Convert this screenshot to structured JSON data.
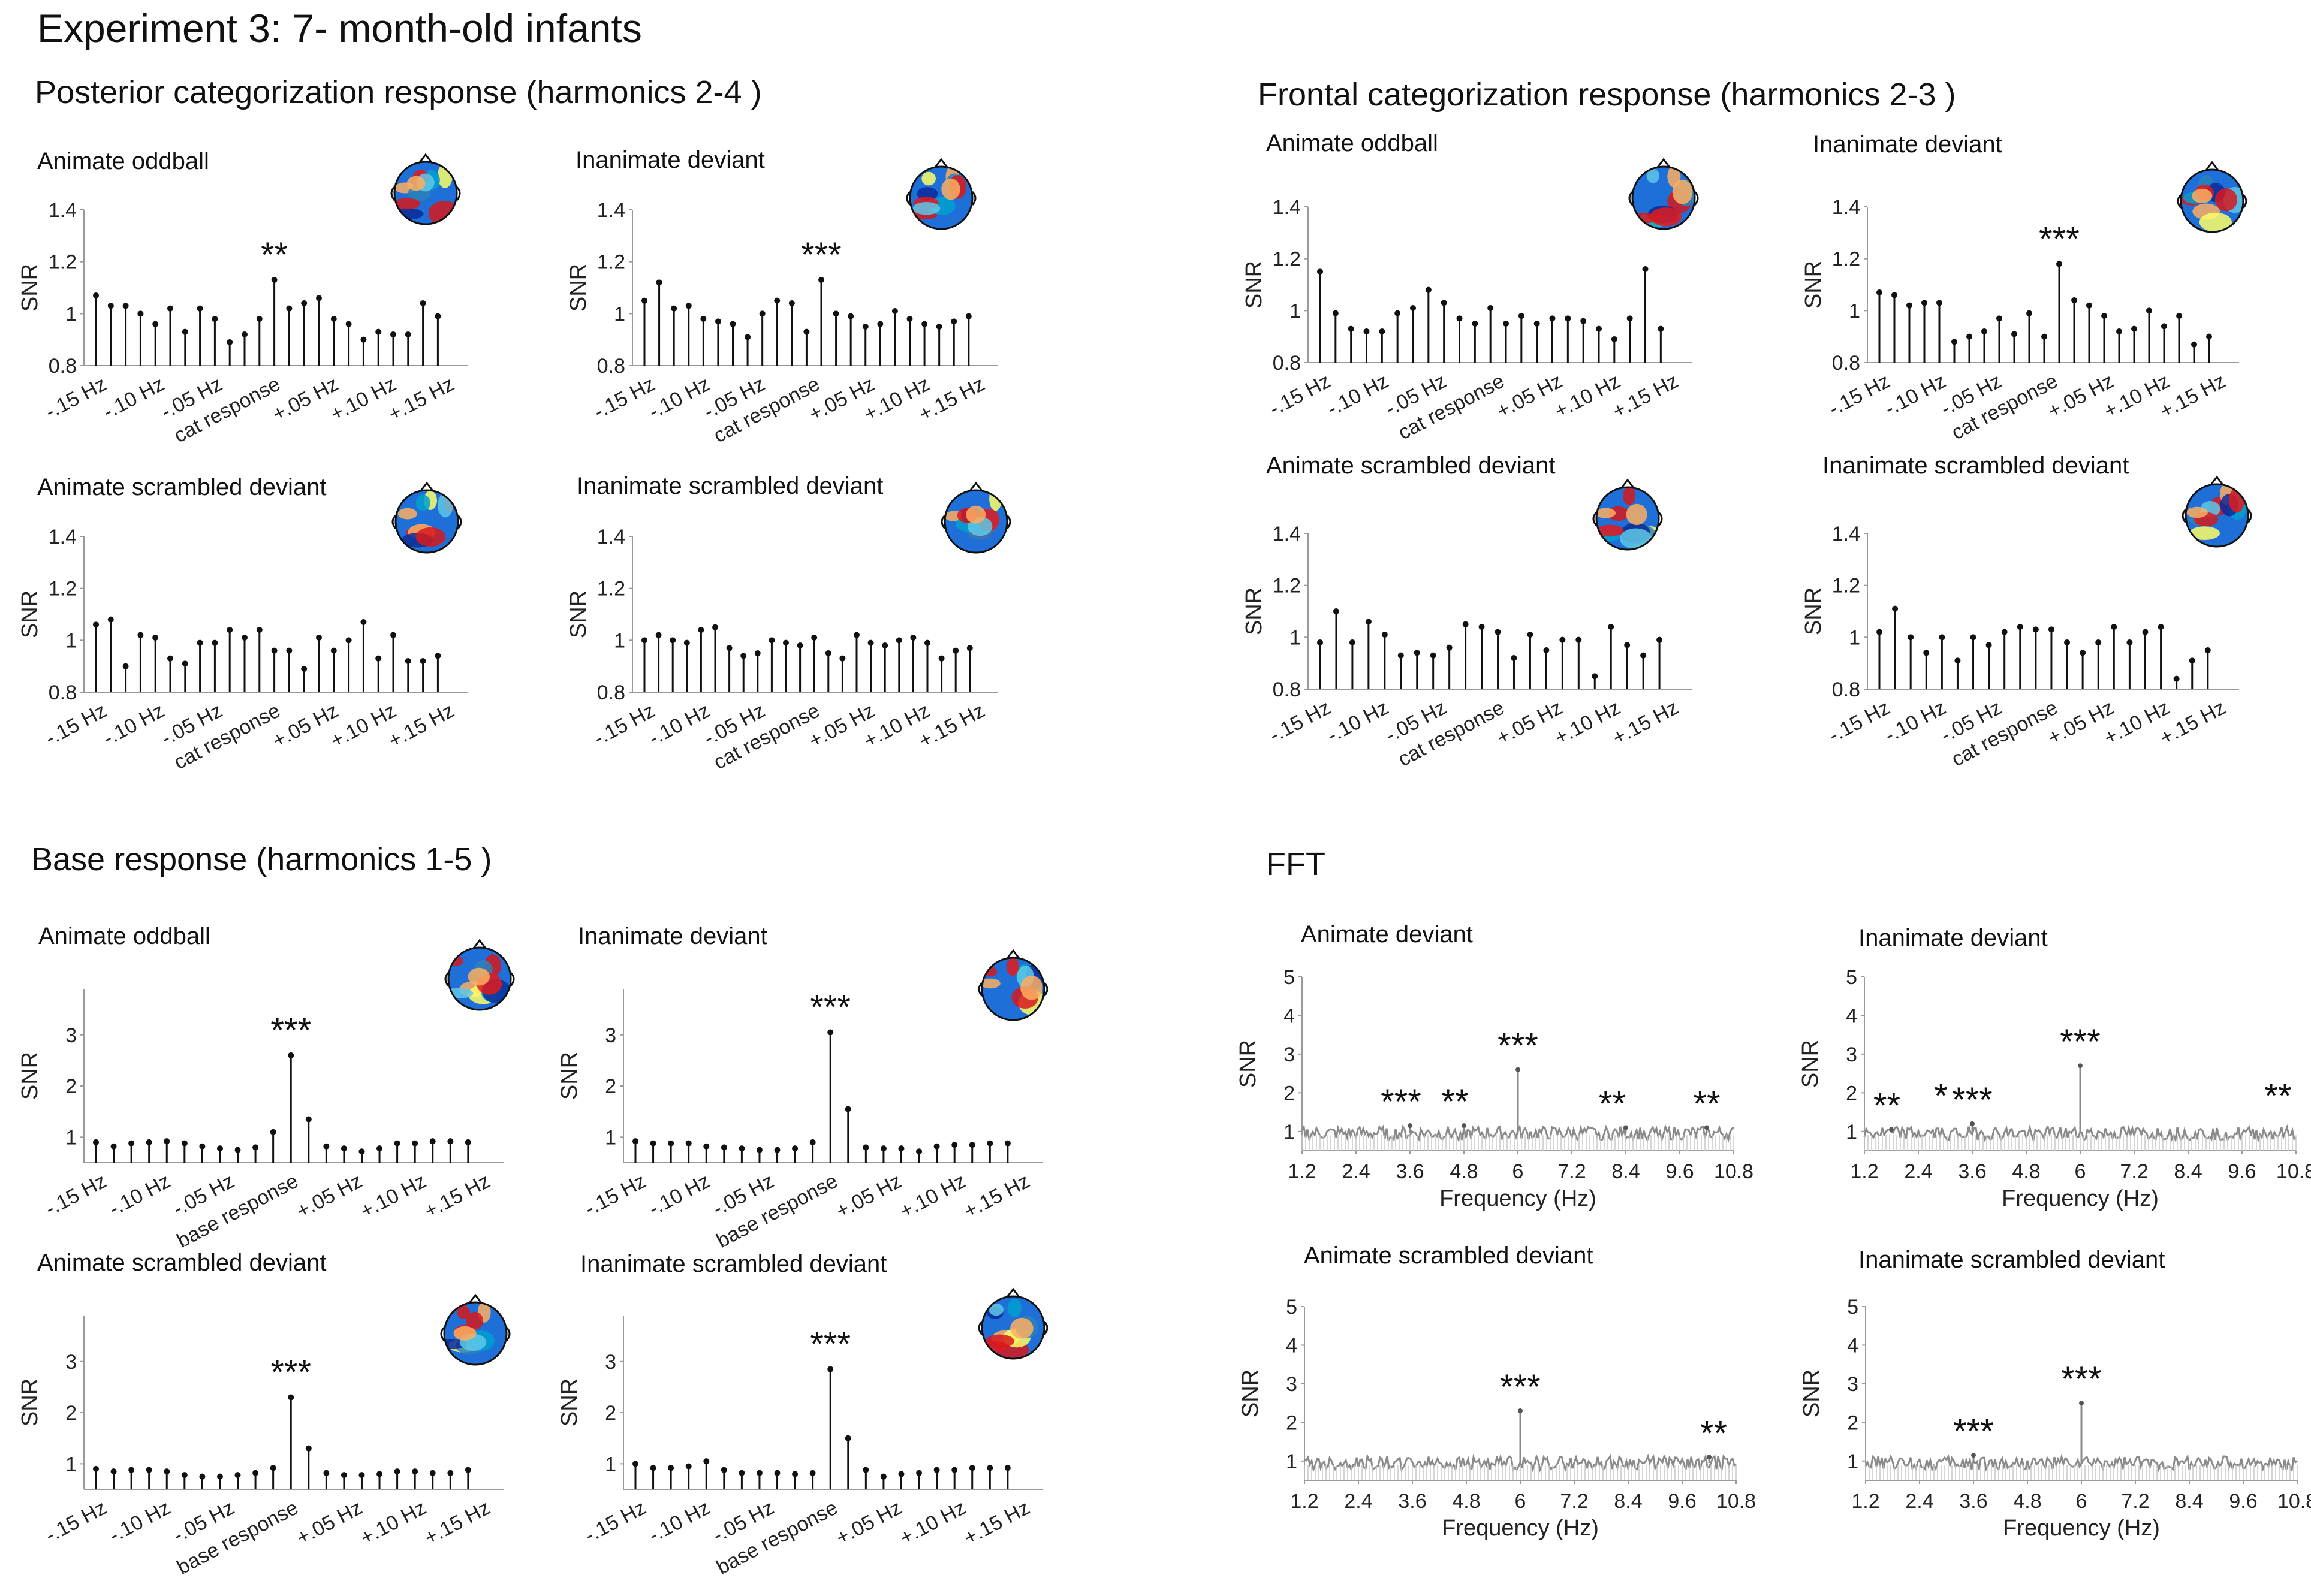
{
  "figure_title": "Experiment 3:  7- month-old infants",
  "sections": {
    "posterior": "Posterior categorization response (harmonics  2-4 )",
    "frontal": "Frontal categorization response (harmonics 2-3 )",
    "base": "Base response (harmonics 1-5 )",
    "fft": "FFT"
  },
  "colors": {
    "stem": "#111111",
    "fft_line": "#8a8a8a",
    "fft_marker": "#555555"
  },
  "chart_data": [
    {
      "id": "post-anim-odd",
      "type": "stem",
      "title": "Animate oddball",
      "ylabel": "SNR",
      "ylim": [
        0.8,
        1.4
      ],
      "yticks": [
        "0.8",
        "1",
        "1.2",
        "1.4"
      ],
      "xtick_labels": [
        "-.15 Hz",
        "-.10 Hz",
        "-.05 Hz",
        "cat response",
        "+.05 Hz",
        "+.10 Hz",
        "+.15 Hz"
      ],
      "values": [
        1.07,
        1.03,
        1.03,
        1.0,
        0.96,
        1.02,
        0.93,
        1.02,
        0.98,
        0.89,
        0.92,
        0.98,
        1.13,
        1.02,
        1.04,
        1.06,
        0.98,
        0.96,
        0.9,
        0.93,
        0.92,
        0.92,
        1.04,
        0.99
      ],
      "sig_index": 12,
      "stars": "**"
    },
    {
      "id": "post-inan-dev",
      "type": "stem",
      "title": "Inanimate deviant",
      "ylabel": "SNR",
      "ylim": [
        0.8,
        1.4
      ],
      "yticks": [
        "0.8",
        "1",
        "1.2",
        "1.4"
      ],
      "xtick_labels": [
        "-.15 Hz",
        "-.10 Hz",
        "-.05 Hz",
        "cat response",
        "+.05 Hz",
        "+.10 Hz",
        "+.15 Hz"
      ],
      "values": [
        1.05,
        1.12,
        1.02,
        1.03,
        0.98,
        0.97,
        0.96,
        0.91,
        1.0,
        1.05,
        1.04,
        0.93,
        1.13,
        1.0,
        0.99,
        0.95,
        0.96,
        1.01,
        0.98,
        0.96,
        0.95,
        0.97,
        0.99
      ],
      "sig_index": 12,
      "stars": "***"
    },
    {
      "id": "post-anim-scr",
      "type": "stem",
      "title": "Animate scrambled deviant",
      "ylabel": "SNR",
      "ylim": [
        0.8,
        1.4
      ],
      "yticks": [
        "0.8",
        "1",
        "1.2",
        "1.4"
      ],
      "xtick_labels": [
        "-.15 Hz",
        "-.10 Hz",
        "-.05 Hz",
        "cat response",
        "+.05 Hz",
        "+.10 Hz",
        "+.15 Hz"
      ],
      "values": [
        1.06,
        1.08,
        0.9,
        1.02,
        1.01,
        0.93,
        0.91,
        0.99,
        0.99,
        1.04,
        1.01,
        1.04,
        0.96,
        0.96,
        0.89,
        1.01,
        0.96,
        1.0,
        1.07,
        0.93,
        1.02,
        0.92,
        0.92,
        0.94
      ],
      "sig_index": null,
      "stars": ""
    },
    {
      "id": "post-inan-scr",
      "type": "stem",
      "title": "Inanimate scrambled deviant",
      "ylabel": "SNR",
      "ylim": [
        0.8,
        1.4
      ],
      "yticks": [
        "0.8",
        "1",
        "1.2",
        "1.4"
      ],
      "xtick_labels": [
        "-.15 Hz",
        "-.10 Hz",
        "-.05 Hz",
        "cat response",
        "+.05 Hz",
        "+.10 Hz",
        "+.15 Hz"
      ],
      "values": [
        1.0,
        1.02,
        1.0,
        0.99,
        1.04,
        1.05,
        0.97,
        0.94,
        0.95,
        1.0,
        0.99,
        0.98,
        1.01,
        0.95,
        0.93,
        1.02,
        0.99,
        0.98,
        1.0,
        1.01,
        0.99,
        0.93,
        0.96,
        0.97
      ],
      "sig_index": null,
      "stars": ""
    },
    {
      "id": "front-anim-odd",
      "type": "stem",
      "title": "Animate oddball",
      "ylabel": "SNR",
      "ylim": [
        0.8,
        1.4
      ],
      "yticks": [
        "0.8",
        "1",
        "1.2",
        "1.4"
      ],
      "xtick_labels": [
        "-.15 Hz",
        "-.10 Hz",
        "-.05 Hz",
        "cat response",
        "+.05 Hz",
        "+.10 Hz",
        "+.15 Hz"
      ],
      "values": [
        1.15,
        0.99,
        0.93,
        0.92,
        0.92,
        0.99,
        1.01,
        1.08,
        1.03,
        0.97,
        0.95,
        1.01,
        0.95,
        0.98,
        0.95,
        0.97,
        0.97,
        0.96,
        0.93,
        0.89,
        0.97,
        1.16,
        0.93
      ],
      "sig_index": null,
      "stars": ""
    },
    {
      "id": "front-inan-dev",
      "type": "stem",
      "title": "Inanimate deviant",
      "ylabel": "SNR",
      "ylim": [
        0.8,
        1.4
      ],
      "yticks": [
        "0.8",
        "1",
        "1.2",
        "1.4"
      ],
      "xtick_labels": [
        "-.15 Hz",
        "-.10 Hz",
        "-.05 Hz",
        "cat response",
        "+.05 Hz",
        "+.10 Hz",
        "+.15 Hz"
      ],
      "values": [
        1.07,
        1.06,
        1.02,
        1.03,
        1.03,
        0.88,
        0.9,
        0.92,
        0.97,
        0.91,
        0.99,
        0.9,
        1.18,
        1.04,
        1.02,
        0.98,
        0.92,
        0.93,
        1.0,
        0.94,
        0.98,
        0.87,
        0.9
      ],
      "sig_index": 12,
      "stars": "***"
    },
    {
      "id": "front-anim-scr",
      "type": "stem",
      "title": "Animate scrambled deviant",
      "ylabel": "SNR",
      "ylim": [
        0.8,
        1.4
      ],
      "yticks": [
        "0.8",
        "1",
        "1.2",
        "1.4"
      ],
      "xtick_labels": [
        "-.15 Hz",
        "-.10 Hz",
        "-.05 Hz",
        "cat response",
        "+.05 Hz",
        "+.10 Hz",
        "+.15 Hz"
      ],
      "values": [
        0.98,
        1.1,
        0.98,
        1.06,
        1.01,
        0.93,
        0.94,
        0.93,
        0.96,
        1.05,
        1.04,
        1.02,
        0.92,
        1.01,
        0.95,
        0.99,
        0.99,
        0.85,
        1.04,
        0.97,
        0.93,
        0.99
      ],
      "sig_index": null,
      "stars": ""
    },
    {
      "id": "front-inan-scr",
      "type": "stem",
      "title": "Inanimate scrambled deviant",
      "ylabel": "SNR",
      "ylim": [
        0.8,
        1.4
      ],
      "yticks": [
        "0.8",
        "1",
        "1.2",
        "1.4"
      ],
      "xtick_labels": [
        "-.15 Hz",
        "-.10 Hz",
        "-.05 Hz",
        "cat response",
        "+.05 Hz",
        "+.10 Hz",
        "+.15 Hz"
      ],
      "values": [
        1.02,
        1.11,
        1.0,
        0.94,
        1.0,
        0.91,
        1.0,
        0.97,
        1.02,
        1.04,
        1.03,
        1.03,
        0.98,
        0.94,
        0.98,
        1.04,
        0.98,
        1.02,
        1.04,
        0.84,
        0.91,
        0.95
      ],
      "sig_index": null,
      "stars": ""
    },
    {
      "id": "base-anim-odd",
      "type": "stem",
      "title": "Animate oddball",
      "ylabel": "SNR",
      "ylim": [
        0.5,
        3.9
      ],
      "yticks": [
        "1",
        "2",
        "3"
      ],
      "xtick_labels": [
        "-.15 Hz",
        "-.10 Hz",
        "-.05 Hz",
        "base response",
        "+.05 Hz",
        "+.10 Hz",
        "+.15 Hz"
      ],
      "values": [
        0.9,
        0.82,
        0.88,
        0.9,
        0.92,
        0.88,
        0.82,
        0.78,
        0.75,
        0.8,
        1.1,
        2.6,
        1.35,
        0.82,
        0.78,
        0.72,
        0.78,
        0.88,
        0.88,
        0.92,
        0.92,
        0.9
      ],
      "sig_index": 11,
      "stars": "***"
    },
    {
      "id": "base-inan-dev",
      "type": "stem",
      "title": "Inanimate deviant",
      "ylabel": "SNR",
      "ylim": [
        0.5,
        3.9
      ],
      "yticks": [
        "1",
        "2",
        "3"
      ],
      "xtick_labels": [
        "-.15 Hz",
        "-.10 Hz",
        "-.05 Hz",
        "base response",
        "+.05 Hz",
        "+.10 Hz",
        "+.15 Hz"
      ],
      "values": [
        0.92,
        0.88,
        0.88,
        0.88,
        0.82,
        0.8,
        0.78,
        0.75,
        0.75,
        0.78,
        0.9,
        3.05,
        1.55,
        0.8,
        0.78,
        0.78,
        0.72,
        0.82,
        0.85,
        0.85,
        0.88,
        0.88
      ],
      "sig_index": 11,
      "stars": "***"
    },
    {
      "id": "base-anim-scr",
      "type": "stem",
      "title": "Animate scrambled deviant",
      "ylabel": "SNR",
      "ylim": [
        0.5,
        3.9
      ],
      "yticks": [
        "1",
        "2",
        "3"
      ],
      "xtick_labels": [
        "-.15 Hz",
        "-.10 Hz",
        "-.05 Hz",
        "base response",
        "+.05 Hz",
        "+.10 Hz",
        "+.15 Hz"
      ],
      "values": [
        0.9,
        0.85,
        0.88,
        0.88,
        0.85,
        0.78,
        0.75,
        0.75,
        0.78,
        0.82,
        0.92,
        2.3,
        1.3,
        0.82,
        0.78,
        0.78,
        0.8,
        0.85,
        0.85,
        0.82,
        0.82,
        0.88
      ],
      "sig_index": 11,
      "stars": "***"
    },
    {
      "id": "base-inan-scr",
      "type": "stem",
      "title": "Inanimate scrambled deviant",
      "ylabel": "SNR",
      "ylim": [
        0.5,
        3.9
      ],
      "yticks": [
        "1",
        "2",
        "3"
      ],
      "xtick_labels": [
        "-.15 Hz",
        "-.10 Hz",
        "-.05 Hz",
        "base response",
        "+.05 Hz",
        "+.10 Hz",
        "+.15 Hz"
      ],
      "values": [
        1.0,
        0.92,
        0.92,
        0.95,
        1.05,
        0.88,
        0.82,
        0.82,
        0.82,
        0.8,
        0.82,
        2.85,
        1.5,
        0.88,
        0.75,
        0.8,
        0.82,
        0.88,
        0.88,
        0.92,
        0.92,
        0.92
      ],
      "sig_index": 11,
      "stars": "***"
    },
    {
      "id": "fft-anim-dev",
      "type": "line",
      "title": "Animate deviant",
      "ylabel": "SNR",
      "xlabel": "Frequency (Hz)",
      "xlim": [
        1.2,
        10.8
      ],
      "ylim": [
        0.5,
        5.0
      ],
      "xticks": [
        "1.2",
        "2.4",
        "3.6",
        "4.8",
        "6",
        "7.2",
        "8.4",
        "9.6",
        "10.8"
      ],
      "yticks": [
        "1",
        "2",
        "3",
        "4",
        "5"
      ],
      "peaks": [
        {
          "x": 6.0,
          "y": 2.6
        },
        {
          "x": 3.6,
          "y": 1.15
        },
        {
          "x": 4.8,
          "y": 1.15
        },
        {
          "x": 8.4,
          "y": 1.1
        },
        {
          "x": 10.2,
          "y": 1.1
        }
      ],
      "significance": [
        {
          "x": 3.4,
          "stars": "***"
        },
        {
          "x": 4.6,
          "stars": "**"
        },
        {
          "x": 6.0,
          "stars": "***"
        },
        {
          "x": 8.1,
          "stars": "**"
        },
        {
          "x": 10.2,
          "stars": "**"
        }
      ]
    },
    {
      "id": "fft-inan-dev",
      "type": "line",
      "title": "Inanimate deviant",
      "ylabel": "SNR",
      "xlabel": "Frequency (Hz)",
      "xlim": [
        1.2,
        10.8
      ],
      "ylim": [
        0.5,
        5.0
      ],
      "xticks": [
        "1.2",
        "2.4",
        "3.6",
        "4.8",
        "6",
        "7.2",
        "8.4",
        "9.6",
        "10.8"
      ],
      "yticks": [
        "1",
        "2",
        "3",
        "4",
        "5"
      ],
      "peaks": [
        {
          "x": 6.0,
          "y": 2.7
        },
        {
          "x": 3.6,
          "y": 1.2
        },
        {
          "x": 1.8,
          "y": 1.05
        }
      ],
      "significance": [
        {
          "x": 1.7,
          "stars": "**"
        },
        {
          "x": 2.9,
          "stars": "*"
        },
        {
          "x": 3.6,
          "stars": "***"
        },
        {
          "x": 6.0,
          "stars": "***"
        },
        {
          "x": 10.4,
          "stars": "**"
        }
      ]
    },
    {
      "id": "fft-anim-scr",
      "type": "line",
      "title": "Animate scrambled deviant",
      "ylabel": "SNR",
      "xlabel": "Frequency (Hz)",
      "xlim": [
        1.2,
        10.8
      ],
      "ylim": [
        0.5,
        5.0
      ],
      "xticks": [
        "1.2",
        "2.4",
        "3.6",
        "4.8",
        "6",
        "7.2",
        "8.4",
        "9.6",
        "10.8"
      ],
      "yticks": [
        "1",
        "2",
        "3",
        "4",
        "5"
      ],
      "peaks": [
        {
          "x": 6.0,
          "y": 2.3
        },
        {
          "x": 10.2,
          "y": 1.1
        }
      ],
      "significance": [
        {
          "x": 6.0,
          "stars": "***"
        },
        {
          "x": 10.3,
          "stars": "**"
        }
      ]
    },
    {
      "id": "fft-inan-scr",
      "type": "line",
      "title": "Inanimate scrambled  deviant",
      "ylabel": "SNR",
      "xlabel": "Frequency (Hz)",
      "xlim": [
        1.2,
        10.8
      ],
      "ylim": [
        0.5,
        5.0
      ],
      "xticks": [
        "1.2",
        "2.4",
        "3.6",
        "4.8",
        "6",
        "7.2",
        "8.4",
        "9.6",
        "10.8"
      ],
      "yticks": [
        "1",
        "2",
        "3",
        "4",
        "5"
      ],
      "peaks": [
        {
          "x": 6.0,
          "y": 2.5
        },
        {
          "x": 3.6,
          "y": 1.15
        }
      ],
      "significance": [
        {
          "x": 3.6,
          "stars": "***"
        },
        {
          "x": 6.0,
          "stars": "***"
        }
      ]
    }
  ]
}
